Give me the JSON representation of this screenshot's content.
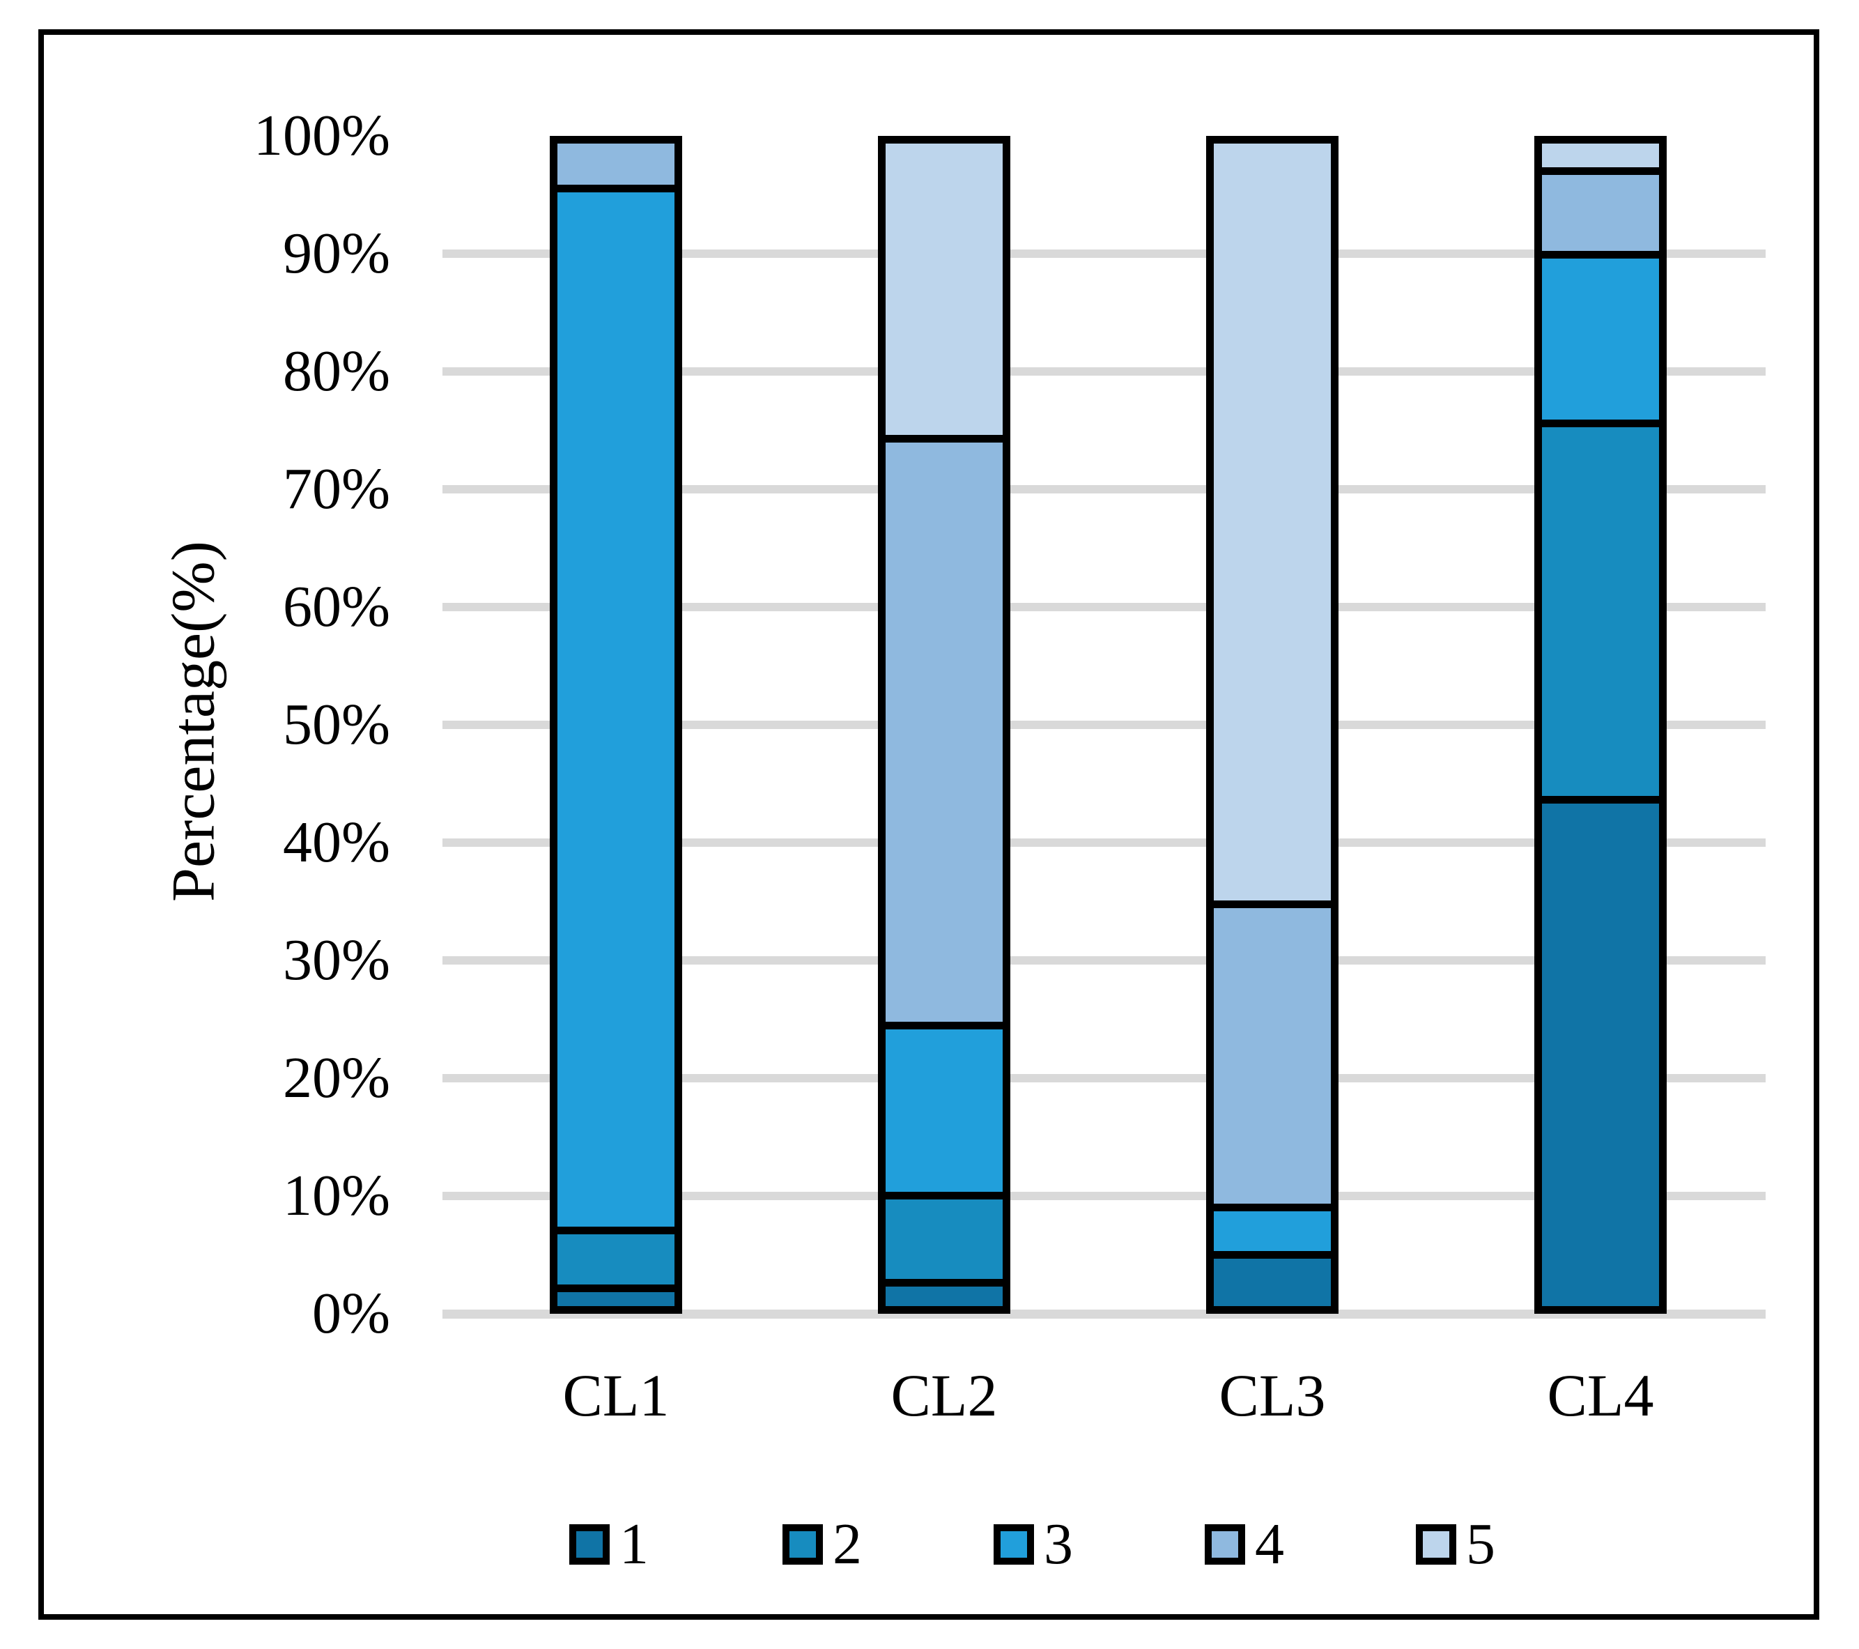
{
  "figure": {
    "background_color": "#FFFFFF",
    "frame_color": "#000000",
    "gridline_color": "#D9D9D9",
    "segment_border_color": "#000000",
    "text_color": "#000000"
  },
  "chart_data": {
    "type": "bar",
    "subtype": "stacked-100-percent-column",
    "title": "",
    "xlabel": "",
    "ylabel": "Percentage(%)",
    "ylim": [
      0,
      100
    ],
    "grid": true,
    "legend_position": "bottom",
    "categories": [
      "CL1",
      "CL2",
      "CL3",
      "CL4"
    ],
    "ytick_labels": [
      "0%",
      "10%",
      "20%",
      "30%",
      "40%",
      "50%",
      "60%",
      "70%",
      "80%",
      "90%",
      "100%"
    ],
    "series": [
      {
        "name": "1",
        "color": "#1074A6",
        "values": [
          1.2,
          1.7,
          4.1,
          43.2
        ]
      },
      {
        "name": "2",
        "color": "#178CBF",
        "values": [
          5.0,
          7.5,
          0.0,
          32.4
        ]
      },
      {
        "name": "3",
        "color": "#219FDB",
        "values": [
          89.6,
          14.6,
          4.1,
          14.5
        ]
      },
      {
        "name": "4",
        "color": "#8FB9DF",
        "values": [
          4.2,
          50.5,
          26.1,
          7.2
        ]
      },
      {
        "name": "5",
        "color": "#BDD5EC",
        "values": [
          0.0,
          25.7,
          65.7,
          2.7
        ]
      }
    ],
    "legend_labels": [
      "1",
      "2",
      "3",
      "4",
      "5"
    ]
  }
}
